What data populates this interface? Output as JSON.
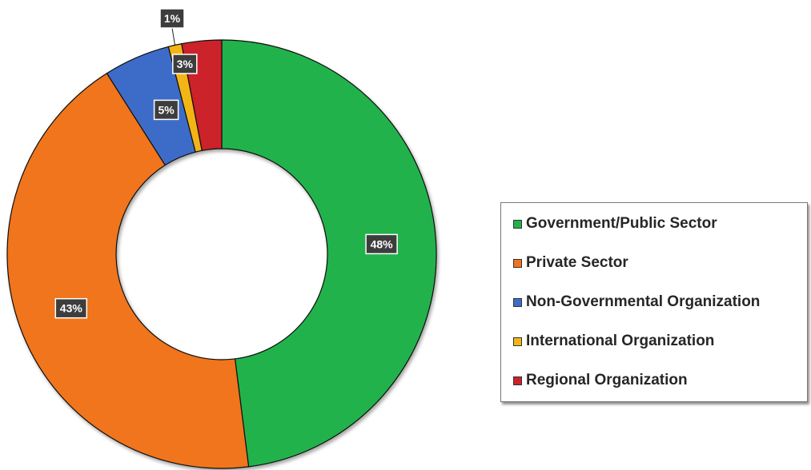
{
  "chart_data": {
    "type": "pie",
    "variant": "donut",
    "title": "",
    "categories": [
      "Government/Public Sector",
      "Private Sector",
      "Non-Governmental Organization",
      "International Organization",
      "Regional Organization"
    ],
    "values": [
      48,
      43,
      5,
      1,
      3
    ],
    "value_labels": [
      "48%",
      "43%",
      "5%",
      "1%",
      "3%"
    ],
    "colors": [
      "#22b24c",
      "#f0741f",
      "#3e6cc8",
      "#f3b518",
      "#cc2229"
    ],
    "legend_position": "right",
    "start_angle": "12 o'clock",
    "direction": "clockwise"
  }
}
